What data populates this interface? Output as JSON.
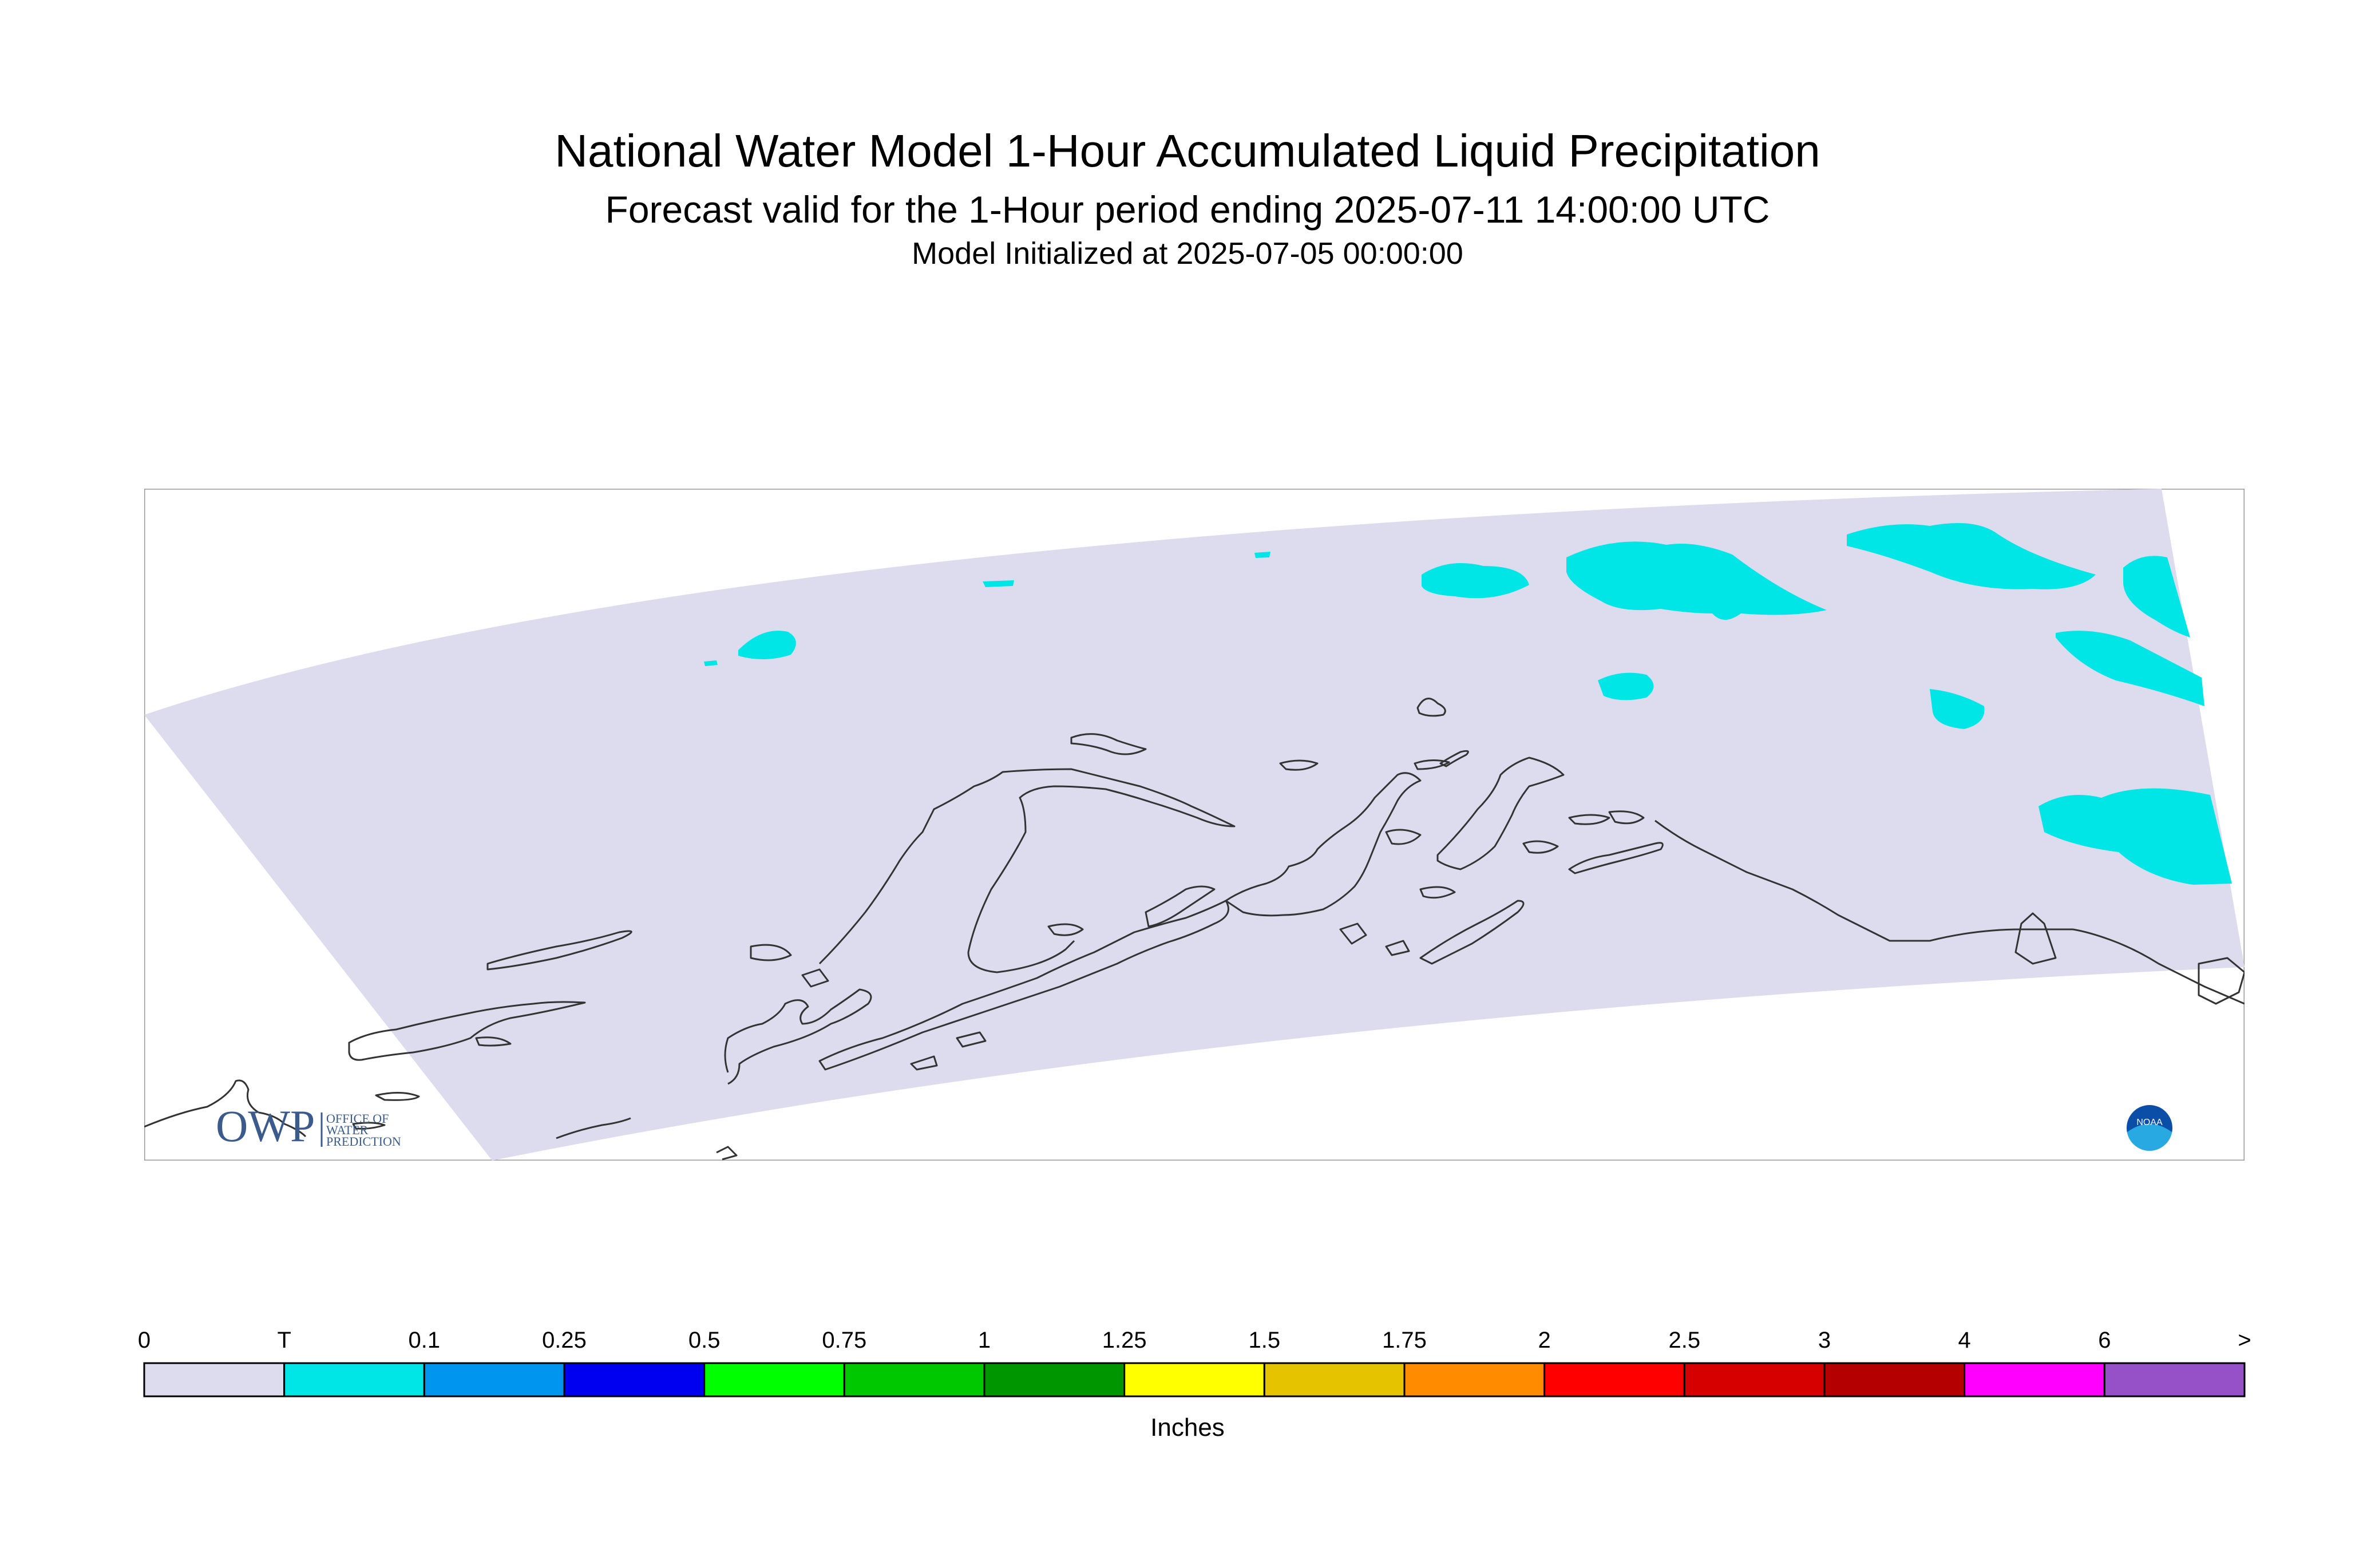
{
  "header": {
    "title": "National Water Model 1-Hour Accumulated Liquid Precipitation",
    "subtitle": "Forecast valid for the 1-Hour period ending 2025-07-11 14:00:00 UTC",
    "init": "Model Initialized at 2025-07-05 00:00:00"
  },
  "colors": {
    "domain": "#dcdcee",
    "coast": "#333333",
    "frame": "#999999",
    "trace": "#00e5e5"
  },
  "logos": {
    "owp_mark": "OWP",
    "owp_line1": "OFFICE OF",
    "owp_line2": "WATER",
    "owp_line3": "PREDICTION",
    "noaa_mark": "NOAA",
    "owp_icon": "owp-logo",
    "noaa_icon": "noaa-logo"
  },
  "legend": {
    "units": "Inches",
    "labels": [
      "0",
      "T",
      "0.1",
      "0.25",
      "0.5",
      "0.75",
      "1",
      "1.25",
      "1.5",
      "1.75",
      "2",
      "2.5",
      "3",
      "4",
      "6",
      ">"
    ],
    "colors": [
      "#dcdcee",
      "#00e5e5",
      "#0096f0",
      "#0000f0",
      "#00ff00",
      "#00c800",
      "#009600",
      "#ffff00",
      "#e6c300",
      "#ff8c00",
      "#ff0000",
      "#d70000",
      "#b40000",
      "#ff00ff",
      "#9650c8"
    ]
  }
}
